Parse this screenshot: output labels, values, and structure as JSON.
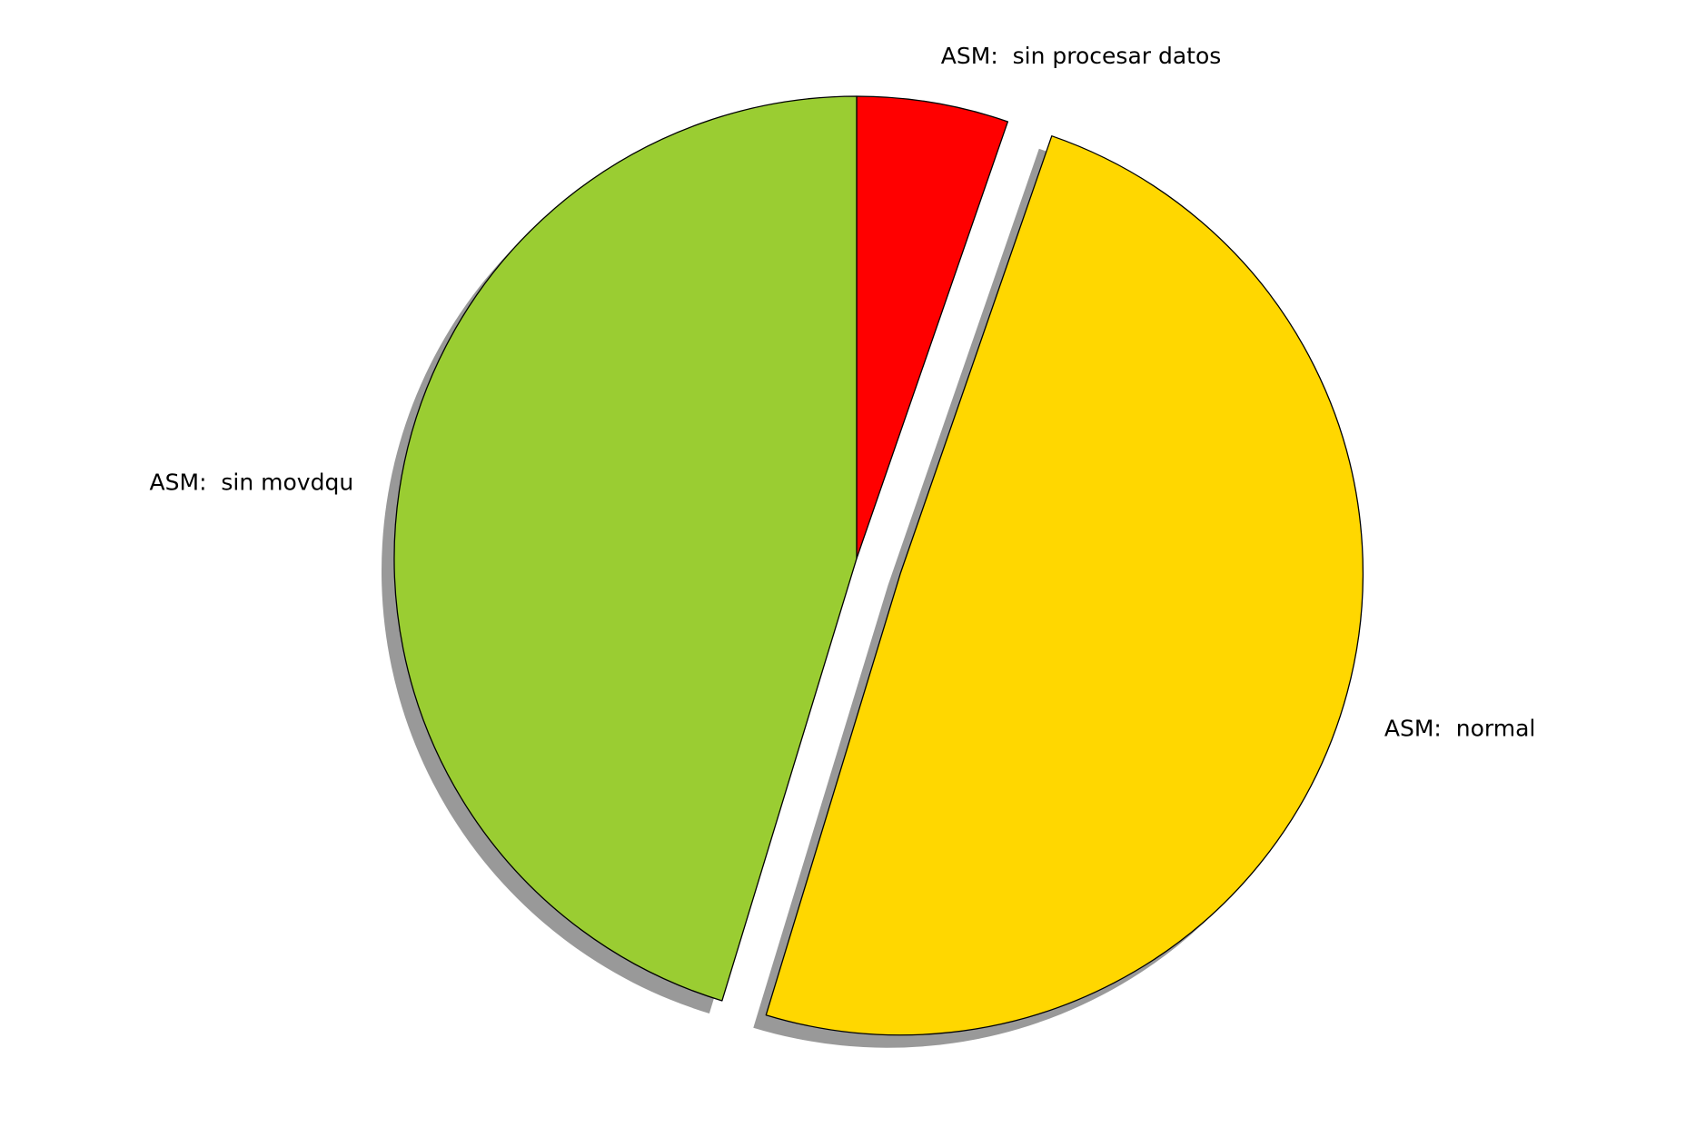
{
  "chart_data": {
    "type": "pie",
    "title": "",
    "start_angle_deg": 90,
    "direction": "clockwise",
    "shadow": true,
    "slices": [
      {
        "label": "ASM:  sin procesar datos",
        "value": 5.3,
        "color": "#ff0000",
        "exploded": false
      },
      {
        "label": "ASM:  normal",
        "value": 49.4,
        "color": "#ffd700",
        "exploded": true
      },
      {
        "label": "ASM:  sin movdqu",
        "value": 45.3,
        "color": "#9acd32",
        "exploded": false
      }
    ]
  }
}
